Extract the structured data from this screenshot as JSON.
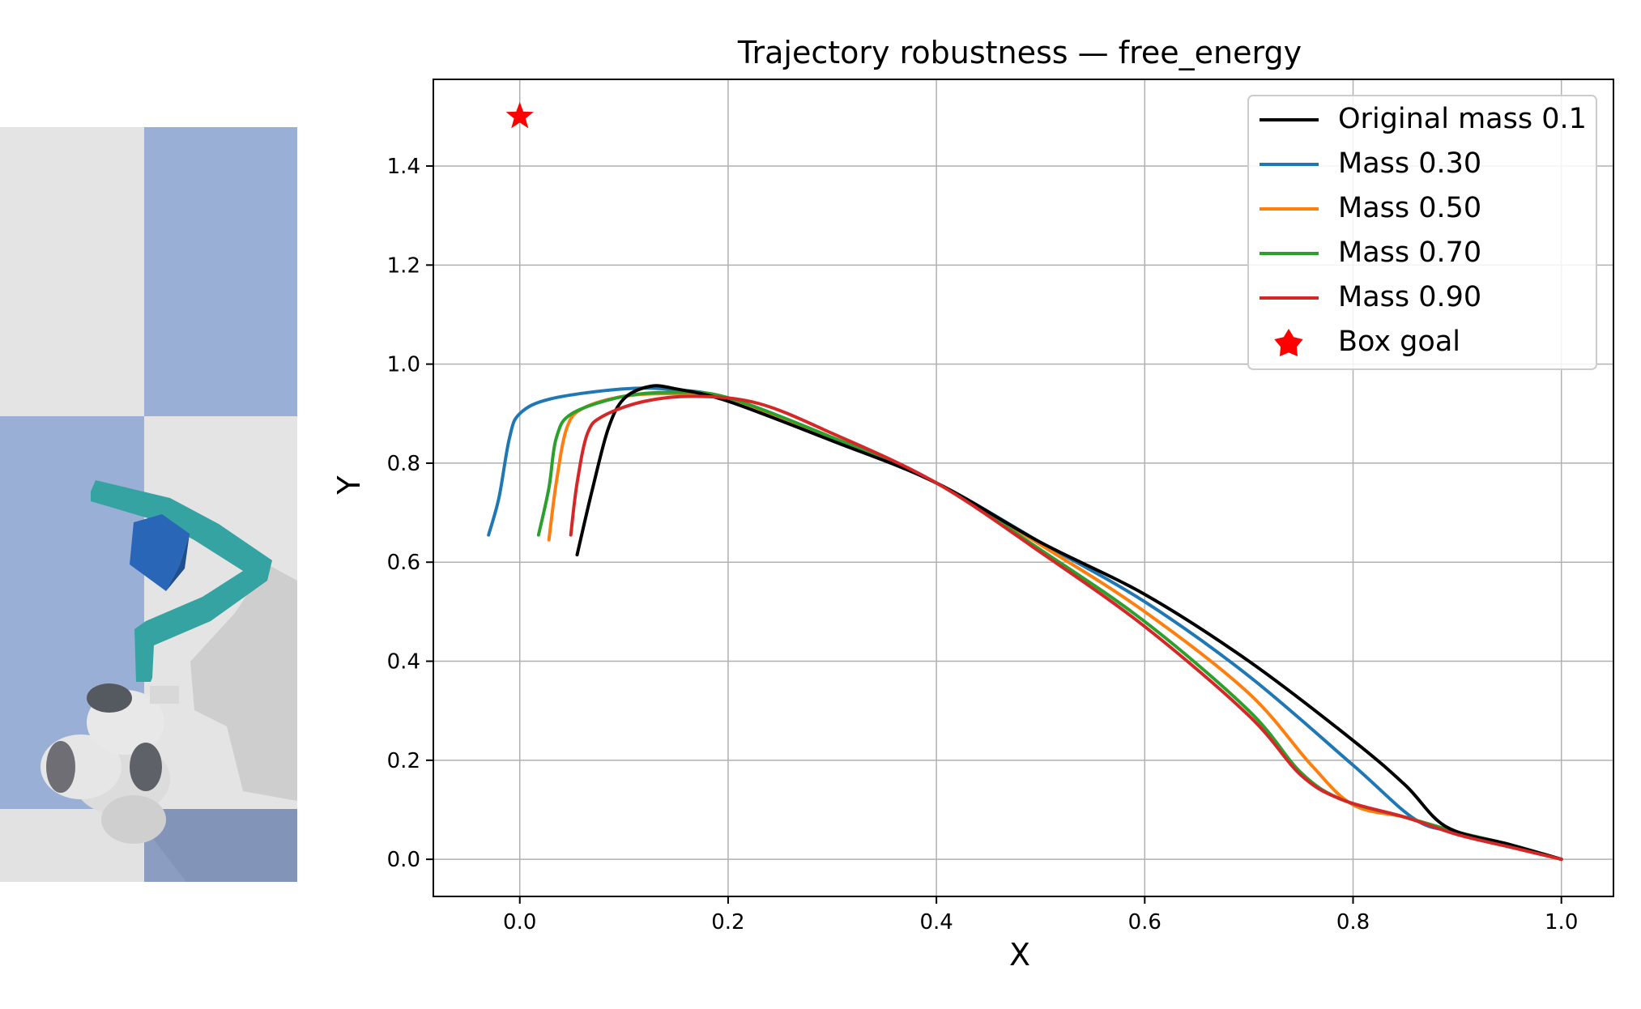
{
  "chart_data": {
    "type": "line",
    "title": "Trajectory robustness — free_energy",
    "xlabel": "X",
    "ylabel": "Y",
    "xlim": [
      -0.083,
      1.05
    ],
    "ylim": [
      -0.075,
      1.575
    ],
    "xticks": [
      0.0,
      0.2,
      0.4,
      0.6,
      0.8,
      1.0
    ],
    "xtick_labels": [
      "0.0",
      "0.2",
      "0.4",
      "0.6",
      "0.8",
      "1.0"
    ],
    "yticks": [
      0.0,
      0.2,
      0.4,
      0.6,
      0.8,
      1.0,
      1.2,
      1.4
    ],
    "ytick_labels": [
      "0.0",
      "0.2",
      "0.4",
      "0.6",
      "0.8",
      "1.0",
      "1.2",
      "1.4"
    ],
    "grid": true,
    "legend_position": "top-right",
    "series": [
      {
        "name": "Original mass 0.1",
        "color": "#000000",
        "points": [
          [
            0.055,
            0.615
          ],
          [
            0.07,
            0.75
          ],
          [
            0.085,
            0.87
          ],
          [
            0.1,
            0.93
          ],
          [
            0.125,
            0.955
          ],
          [
            0.15,
            0.95
          ],
          [
            0.2,
            0.925
          ],
          [
            0.3,
            0.845
          ],
          [
            0.4,
            0.76
          ],
          [
            0.5,
            0.64
          ],
          [
            0.6,
            0.535
          ],
          [
            0.7,
            0.4
          ],
          [
            0.8,
            0.24
          ],
          [
            0.85,
            0.15
          ],
          [
            0.89,
            0.065
          ],
          [
            0.95,
            0.03
          ],
          [
            1.0,
            0.0
          ]
        ]
      },
      {
        "name": "Mass 0.30",
        "color": "#1f77b4",
        "points": [
          [
            -0.03,
            0.655
          ],
          [
            -0.02,
            0.73
          ],
          [
            -0.01,
            0.85
          ],
          [
            0.0,
            0.9
          ],
          [
            0.03,
            0.93
          ],
          [
            0.1,
            0.95
          ],
          [
            0.15,
            0.948
          ],
          [
            0.2,
            0.93
          ],
          [
            0.3,
            0.85
          ],
          [
            0.4,
            0.76
          ],
          [
            0.5,
            0.64
          ],
          [
            0.6,
            0.52
          ],
          [
            0.7,
            0.37
          ],
          [
            0.8,
            0.19
          ],
          [
            0.86,
            0.08
          ],
          [
            0.9,
            0.055
          ],
          [
            0.95,
            0.03
          ],
          [
            1.0,
            0.0
          ]
        ]
      },
      {
        "name": "Mass 0.50",
        "color": "#ff7f0e",
        "points": [
          [
            0.028,
            0.645
          ],
          [
            0.035,
            0.76
          ],
          [
            0.045,
            0.87
          ],
          [
            0.06,
            0.91
          ],
          [
            0.1,
            0.935
          ],
          [
            0.15,
            0.94
          ],
          [
            0.2,
            0.93
          ],
          [
            0.3,
            0.85
          ],
          [
            0.4,
            0.76
          ],
          [
            0.5,
            0.635
          ],
          [
            0.6,
            0.5
          ],
          [
            0.7,
            0.335
          ],
          [
            0.76,
            0.19
          ],
          [
            0.8,
            0.11
          ],
          [
            0.85,
            0.085
          ],
          [
            0.9,
            0.055
          ],
          [
            0.95,
            0.03
          ],
          [
            1.0,
            0.0
          ]
        ]
      },
      {
        "name": "Mass 0.70",
        "color": "#2ca02c",
        "points": [
          [
            0.018,
            0.655
          ],
          [
            0.028,
            0.75
          ],
          [
            0.035,
            0.85
          ],
          [
            0.05,
            0.9
          ],
          [
            0.1,
            0.935
          ],
          [
            0.15,
            0.943
          ],
          [
            0.2,
            0.932
          ],
          [
            0.3,
            0.852
          ],
          [
            0.4,
            0.76
          ],
          [
            0.5,
            0.625
          ],
          [
            0.6,
            0.48
          ],
          [
            0.7,
            0.3
          ],
          [
            0.75,
            0.175
          ],
          [
            0.79,
            0.12
          ],
          [
            0.85,
            0.085
          ],
          [
            0.9,
            0.055
          ],
          [
            0.95,
            0.03
          ],
          [
            1.0,
            0.0
          ]
        ]
      },
      {
        "name": "Mass 0.90",
        "color": "#d62728",
        "points": [
          [
            0.049,
            0.655
          ],
          [
            0.055,
            0.76
          ],
          [
            0.065,
            0.86
          ],
          [
            0.08,
            0.895
          ],
          [
            0.12,
            0.925
          ],
          [
            0.17,
            0.935
          ],
          [
            0.23,
            0.92
          ],
          [
            0.3,
            0.86
          ],
          [
            0.4,
            0.76
          ],
          [
            0.5,
            0.62
          ],
          [
            0.6,
            0.47
          ],
          [
            0.7,
            0.29
          ],
          [
            0.75,
            0.17
          ],
          [
            0.79,
            0.12
          ],
          [
            0.85,
            0.085
          ],
          [
            0.9,
            0.05
          ],
          [
            0.95,
            0.025
          ],
          [
            1.0,
            0.0
          ]
        ]
      }
    ],
    "goal": {
      "name": "Box goal",
      "color": "#ff0000",
      "x": 0.0,
      "y": 1.5
    }
  }
}
